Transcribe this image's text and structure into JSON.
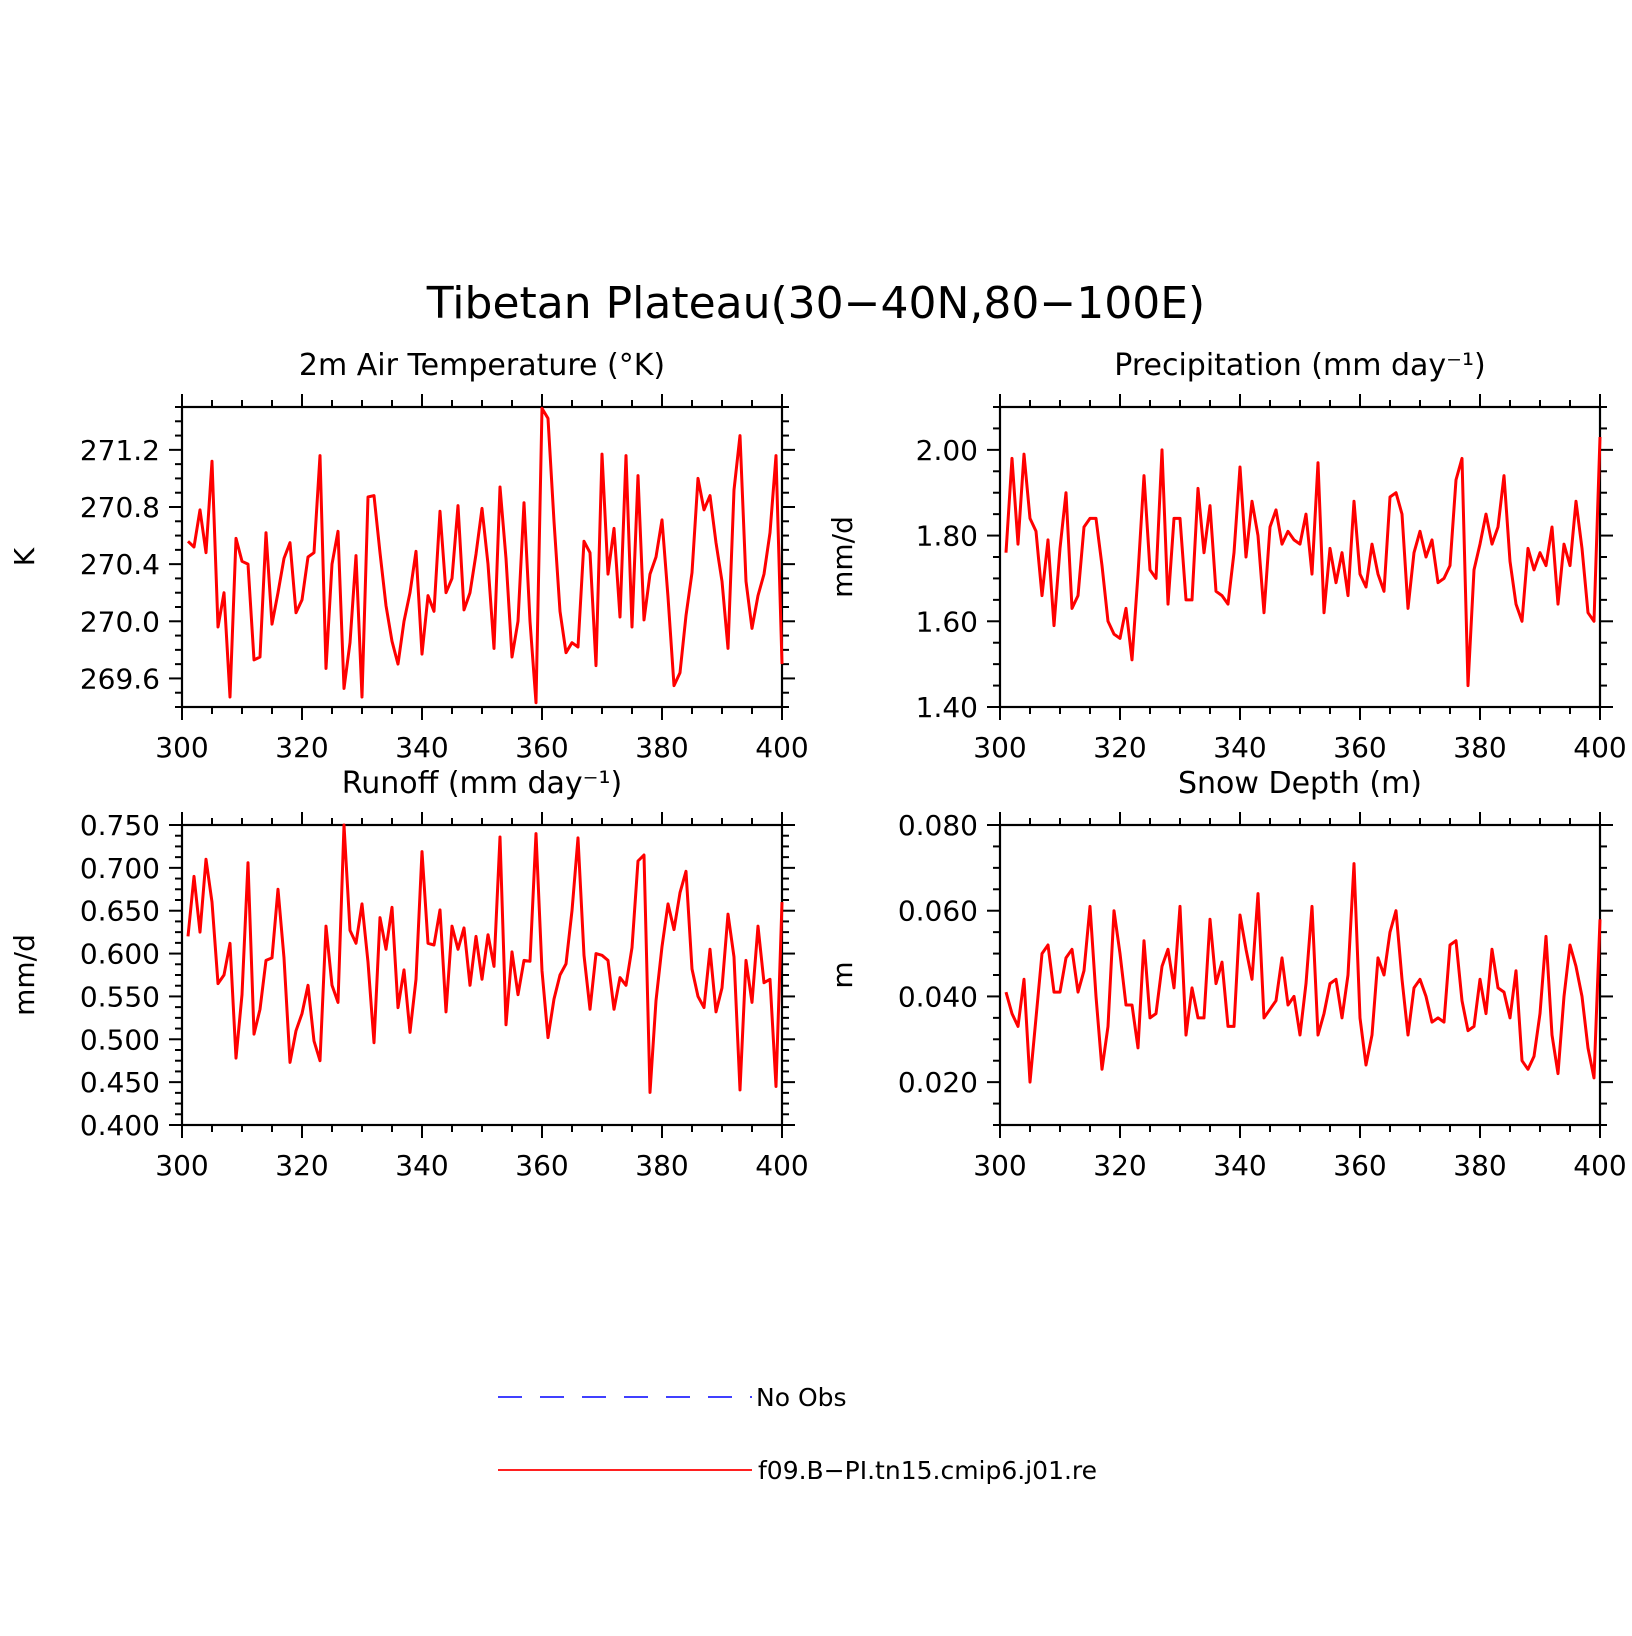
{
  "figure": {
    "title": "Tibetan Plateau(30−40N,80−100E)",
    "line_color": "#ff0000",
    "obs_color": "#0000ff",
    "background": "#ffffff"
  },
  "legend": {
    "items": [
      {
        "label": "No Obs",
        "style": "dashed",
        "color": "#0000ff"
      },
      {
        "label": "f09.B−PI.tn15.cmip6.j01.re",
        "style": "solid",
        "color": "#ff0000"
      }
    ]
  },
  "chart_data": [
    {
      "type": "line",
      "title": "2m Air Temperature (°K)",
      "ylabel": "K",
      "xlabel": "",
      "xlim": [
        300,
        400
      ],
      "ylim": [
        269.4,
        271.5
      ],
      "xticks": [
        300,
        320,
        340,
        360,
        380,
        400
      ],
      "xtick_labels": [
        "300",
        "320",
        "340",
        "360",
        "380",
        "400"
      ],
      "yticks": [
        269.6,
        270.0,
        270.4,
        270.8,
        271.2
      ],
      "ytick_labels": [
        "269.6",
        "270.0",
        "270.4",
        "270.8",
        "271.2"
      ],
      "series": [
        {
          "x_start": 301,
          "x_step": 1,
          "values": [
            270.56,
            270.52,
            270.78,
            270.48,
            271.12,
            269.96,
            270.2,
            269.47,
            270.58,
            270.42,
            270.4,
            269.73,
            269.75,
            270.62,
            269.98,
            270.2,
            270.44,
            270.55,
            270.06,
            270.15,
            270.45,
            270.48,
            271.16,
            269.67,
            270.4,
            270.63,
            269.53,
            269.85,
            270.46,
            269.47,
            270.87,
            270.88,
            270.48,
            270.11,
            269.86,
            269.7,
            270.0,
            270.2,
            270.49,
            269.77,
            270.18,
            270.07,
            270.77,
            270.2,
            270.3,
            270.81,
            270.08,
            270.2,
            270.47,
            270.79,
            270.4,
            269.81,
            270.94,
            270.44,
            269.75,
            270.0,
            270.83,
            270.0,
            269.43,
            271.49,
            271.42,
            270.7,
            270.07,
            269.78,
            269.85,
            269.82,
            270.56,
            270.48,
            269.69,
            271.17,
            270.33,
            270.65,
            270.03,
            271.16,
            269.96,
            271.02,
            270.01,
            270.33,
            270.45,
            270.71,
            270.17,
            269.55,
            269.64,
            270.04,
            270.34,
            271.0,
            270.78,
            270.88,
            270.55,
            270.28,
            269.81,
            270.92,
            271.3,
            270.28,
            269.95,
            270.18,
            270.33,
            270.62,
            271.16,
            269.7
          ]
        }
      ]
    },
    {
      "type": "line",
      "title": "Precipitation (mm day⁻¹)",
      "ylabel": "mm/d",
      "xlabel": "",
      "xlim": [
        300,
        400
      ],
      "ylim": [
        1.4,
        2.1
      ],
      "xticks": [
        300,
        320,
        340,
        360,
        380,
        400
      ],
      "xtick_labels": [
        "300",
        "320",
        "340",
        "360",
        "380",
        "400"
      ],
      "yticks": [
        1.4,
        1.6,
        1.8,
        2.0
      ],
      "ytick_labels": [
        "1.40",
        "1.60",
        "1.80",
        "2.00"
      ],
      "series": [
        {
          "x_start": 301,
          "x_step": 1,
          "values": [
            1.76,
            1.98,
            1.78,
            1.99,
            1.84,
            1.81,
            1.66,
            1.79,
            1.59,
            1.77,
            1.9,
            1.63,
            1.66,
            1.82,
            1.84,
            1.84,
            1.73,
            1.6,
            1.57,
            1.56,
            1.63,
            1.51,
            1.71,
            1.94,
            1.72,
            1.7,
            2.0,
            1.64,
            1.84,
            1.84,
            1.65,
            1.65,
            1.91,
            1.76,
            1.87,
            1.67,
            1.66,
            1.64,
            1.76,
            1.96,
            1.75,
            1.88,
            1.8,
            1.62,
            1.82,
            1.86,
            1.78,
            1.81,
            1.79,
            1.78,
            1.85,
            1.71,
            1.97,
            1.62,
            1.77,
            1.69,
            1.76,
            1.66,
            1.88,
            1.71,
            1.68,
            1.78,
            1.71,
            1.67,
            1.89,
            1.9,
            1.85,
            1.63,
            1.76,
            1.81,
            1.75,
            1.79,
            1.69,
            1.7,
            1.73,
            1.93,
            1.98,
            1.45,
            1.72,
            1.78,
            1.85,
            1.78,
            1.82,
            1.94,
            1.74,
            1.64,
            1.6,
            1.77,
            1.72,
            1.76,
            1.73,
            1.82,
            1.64,
            1.78,
            1.73,
            1.88,
            1.77,
            1.62,
            1.6,
            2.03
          ]
        }
      ]
    },
    {
      "type": "line",
      "title": "Runoff (mm day⁻¹)",
      "ylabel": "mm/d",
      "xlabel": "",
      "xlim": [
        300,
        400
      ],
      "ylim": [
        0.4,
        0.75
      ],
      "xticks": [
        300,
        320,
        340,
        360,
        380,
        400
      ],
      "xtick_labels": [
        "300",
        "320",
        "340",
        "360",
        "380",
        "400"
      ],
      "yticks": [
        0.4,
        0.45,
        0.5,
        0.55,
        0.6,
        0.65,
        0.7,
        0.75
      ],
      "ytick_labels": [
        "0.400",
        "0.450",
        "0.500",
        "0.550",
        "0.600",
        "0.650",
        "0.700",
        "0.750"
      ],
      "series": [
        {
          "x_start": 301,
          "x_step": 1,
          "values": [
            0.62,
            0.69,
            0.625,
            0.71,
            0.66,
            0.565,
            0.575,
            0.612,
            0.478,
            0.552,
            0.706,
            0.506,
            0.535,
            0.592,
            0.595,
            0.675,
            0.595,
            0.473,
            0.51,
            0.53,
            0.563,
            0.498,
            0.475,
            0.632,
            0.563,
            0.543,
            0.751,
            0.627,
            0.612,
            0.658,
            0.59,
            0.496,
            0.642,
            0.605,
            0.654,
            0.537,
            0.581,
            0.508,
            0.57,
            0.719,
            0.612,
            0.61,
            0.651,
            0.532,
            0.632,
            0.605,
            0.63,
            0.563,
            0.62,
            0.57,
            0.622,
            0.585,
            0.736,
            0.517,
            0.602,
            0.552,
            0.592,
            0.591,
            0.74,
            0.58,
            0.502,
            0.547,
            0.575,
            0.588,
            0.65,
            0.735,
            0.598,
            0.535,
            0.6,
            0.598,
            0.592,
            0.535,
            0.572,
            0.563,
            0.607,
            0.708,
            0.715,
            0.438,
            0.545,
            0.608,
            0.658,
            0.628,
            0.671,
            0.696,
            0.582,
            0.55,
            0.537,
            0.605,
            0.532,
            0.56,
            0.646,
            0.596,
            0.441,
            0.592,
            0.543,
            0.632,
            0.566,
            0.57,
            0.445,
            0.66
          ]
        }
      ]
    },
    {
      "type": "line",
      "title": "Snow Depth (m)",
      "ylabel": "m",
      "xlabel": "",
      "xlim": [
        300,
        400
      ],
      "ylim": [
        0.01,
        0.08
      ],
      "xticks": [
        300,
        320,
        340,
        360,
        380,
        400
      ],
      "xtick_labels": [
        "300",
        "320",
        "340",
        "360",
        "380",
        "400"
      ],
      "yticks": [
        0.02,
        0.04,
        0.06,
        0.08
      ],
      "ytick_labels": [
        "0.020",
        "0.040",
        "0.060",
        "0.080"
      ],
      "series": [
        {
          "x_start": 301,
          "x_step": 1,
          "values": [
            0.041,
            0.036,
            0.033,
            0.044,
            0.02,
            0.035,
            0.05,
            0.052,
            0.041,
            0.041,
            0.049,
            0.051,
            0.041,
            0.046,
            0.061,
            0.04,
            0.023,
            0.033,
            0.06,
            0.05,
            0.038,
            0.038,
            0.028,
            0.053,
            0.035,
            0.036,
            0.047,
            0.051,
            0.042,
            0.061,
            0.031,
            0.042,
            0.035,
            0.035,
            0.058,
            0.043,
            0.048,
            0.033,
            0.033,
            0.059,
            0.051,
            0.044,
            0.064,
            0.035,
            0.037,
            0.039,
            0.049,
            0.038,
            0.04,
            0.031,
            0.043,
            0.061,
            0.031,
            0.036,
            0.043,
            0.044,
            0.035,
            0.045,
            0.071,
            0.035,
            0.024,
            0.031,
            0.049,
            0.045,
            0.055,
            0.06,
            0.044,
            0.031,
            0.042,
            0.044,
            0.04,
            0.034,
            0.035,
            0.034,
            0.052,
            0.053,
            0.039,
            0.032,
            0.033,
            0.044,
            0.036,
            0.051,
            0.042,
            0.041,
            0.035,
            0.046,
            0.025,
            0.023,
            0.026,
            0.036,
            0.054,
            0.031,
            0.022,
            0.04,
            0.052,
            0.047,
            0.04,
            0.028,
            0.021,
            0.058
          ]
        }
      ]
    }
  ]
}
